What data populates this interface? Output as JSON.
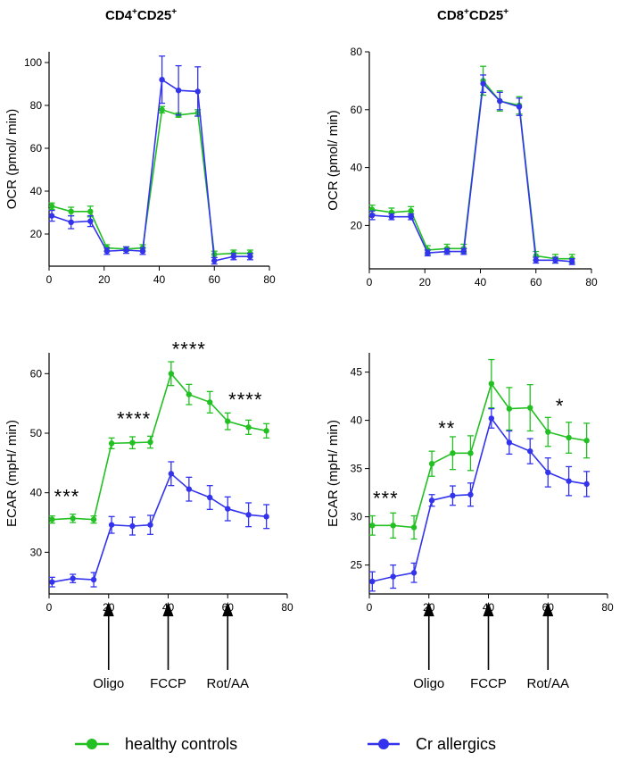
{
  "titles": {
    "left": {
      "main": "CD4",
      "sup1": "+",
      "mid": "CD25",
      "sup2": "+"
    },
    "right": {
      "main": "CD8",
      "sup1": "+",
      "mid": "CD25",
      "sup2": "+"
    }
  },
  "colors": {
    "healthy": "#22c022",
    "allergic": "#3333ee"
  },
  "injections": [
    {
      "label": "Oligo",
      "time": 20
    },
    {
      "label": "FCCP",
      "time": 40
    },
    {
      "label": "Rot/AA",
      "time": 60
    }
  ],
  "legend": {
    "healthy": "healthy controls",
    "allergic": "Cr allergics"
  },
  "chart_data": [
    {
      "type": "line",
      "ylabel": "OCR (pmol/ min)",
      "xlim": [
        0,
        80
      ],
      "ylim": [
        5,
        105
      ],
      "xticks": [
        0,
        20,
        40,
        60,
        80
      ],
      "yticks": [
        20,
        40,
        60,
        80,
        100
      ],
      "x": [
        1,
        8,
        15,
        21,
        28,
        34,
        41,
        47,
        54,
        60,
        67,
        73
      ],
      "series": [
        {
          "name": "healthy controls",
          "key": "healthy",
          "values": [
            33,
            30.5,
            30.5,
            13.5,
            13,
            13.5,
            78,
            75.5,
            76.5,
            10.5,
            11,
            11
          ],
          "errors": [
            1.5,
            2,
            2.5,
            1.5,
            1,
            1.5,
            1.5,
            1,
            1.5,
            1.5,
            1.5,
            1.5
          ]
        },
        {
          "name": "Cr allergics",
          "key": "allergic",
          "values": [
            28.5,
            25.5,
            26,
            12,
            12.5,
            12,
            92,
            87,
            86.5,
            7.5,
            9.5,
            9.5
          ],
          "errors": [
            2.5,
            3,
            2.5,
            1.5,
            1.5,
            1.5,
            11,
            11.5,
            11.5,
            1.5,
            1.5,
            1.5
          ]
        }
      ],
      "annotations": []
    },
    {
      "type": "line",
      "ylabel": "OCR (pmol/ min)",
      "xlim": [
        0,
        80
      ],
      "ylim": [
        5,
        80
      ],
      "xticks": [
        0,
        20,
        40,
        60,
        80
      ],
      "yticks": [
        20,
        40,
        60,
        80
      ],
      "x": [
        1,
        8,
        15,
        21,
        28,
        34,
        41,
        47,
        54,
        60,
        67,
        73
      ],
      "series": [
        {
          "name": "healthy controls",
          "key": "healthy",
          "values": [
            25.5,
            24.5,
            25,
            11.5,
            12,
            12,
            70,
            63,
            61.5,
            9.5,
            8.5,
            8.5
          ],
          "errors": [
            1.5,
            1.5,
            1.5,
            1.5,
            1.5,
            1.5,
            5,
            3.5,
            3,
            1.5,
            1.5,
            1.5
          ]
        },
        {
          "name": "Cr allergics",
          "key": "allergic",
          "values": [
            23.5,
            23,
            23,
            10.5,
            11,
            11,
            69,
            63,
            61,
            8,
            8,
            7.5
          ],
          "errors": [
            1.5,
            1,
            1,
            1,
            1,
            1,
            3,
            3,
            3,
            1,
            1,
            1
          ]
        }
      ],
      "annotations": []
    },
    {
      "type": "line",
      "ylabel": "ECAR (mpH/ min)",
      "xlim": [
        0,
        80
      ],
      "ylim": [
        23,
        63.5
      ],
      "xticks": [
        0,
        20,
        40,
        60,
        80
      ],
      "yticks": [
        30,
        40,
        50,
        60
      ],
      "x": [
        1,
        8,
        15,
        21,
        28,
        34,
        41,
        47,
        54,
        60,
        67,
        73
      ],
      "series": [
        {
          "name": "healthy controls",
          "key": "healthy",
          "values": [
            35.5,
            35.7,
            35.5,
            48.3,
            48.4,
            48.5,
            60,
            56.5,
            55.2,
            52,
            51,
            50.4
          ],
          "errors": [
            0.6,
            0.7,
            0.6,
            0.9,
            1,
            1,
            2,
            1.7,
            1.8,
            1.4,
            1.2,
            1.2
          ]
        },
        {
          "name": "Cr allergics",
          "key": "allergic",
          "values": [
            25,
            25.6,
            25.4,
            34.6,
            34.4,
            34.6,
            43.2,
            40.6,
            39.2,
            37.3,
            36.3,
            36
          ],
          "errors": [
            0.8,
            0.7,
            1.2,
            1.4,
            1.5,
            1.6,
            2,
            2,
            2,
            2,
            2,
            2
          ]
        }
      ],
      "annotations": [
        {
          "text": "***",
          "x": 6,
          "y": 38.2
        },
        {
          "text": "****",
          "x": 28.5,
          "y": 51.3
        },
        {
          "text": "****",
          "x": 47,
          "y": 63
        },
        {
          "text": "****",
          "x": 66,
          "y": 54.5
        }
      ]
    },
    {
      "type": "line",
      "ylabel": "ECAR (mpH/ min)",
      "xlim": [
        0,
        80
      ],
      "ylim": [
        22,
        47
      ],
      "xticks": [
        0,
        20,
        40,
        60,
        80
      ],
      "yticks": [
        25,
        30,
        35,
        40,
        45
      ],
      "x": [
        1,
        8,
        15,
        21,
        28,
        34,
        41,
        47,
        54,
        60,
        67,
        73
      ],
      "series": [
        {
          "name": "healthy controls",
          "key": "healthy",
          "values": [
            29.1,
            29.1,
            28.9,
            35.5,
            36.6,
            36.6,
            43.8,
            41.2,
            41.3,
            38.8,
            38.2,
            37.9
          ],
          "errors": [
            1,
            1.3,
            1.2,
            1.3,
            1.7,
            1.8,
            2.5,
            2.2,
            2.4,
            1.5,
            1.6,
            1.8
          ]
        },
        {
          "name": "Cr allergics",
          "key": "allergic",
          "values": [
            23.3,
            23.8,
            24.2,
            31.7,
            32.2,
            32.3,
            40.2,
            37.7,
            36.8,
            34.6,
            33.7,
            33.4
          ],
          "errors": [
            1,
            1.2,
            1,
            0.6,
            1,
            1.2,
            1,
            1.2,
            1.3,
            1.5,
            1.5,
            1.3
          ]
        }
      ],
      "annotations": [
        {
          "text": "***",
          "x": 5.5,
          "y": 31.2
        },
        {
          "text": "**",
          "x": 26,
          "y": 38.5
        },
        {
          "text": "*",
          "x": 64,
          "y": 40.8
        }
      ]
    }
  ]
}
